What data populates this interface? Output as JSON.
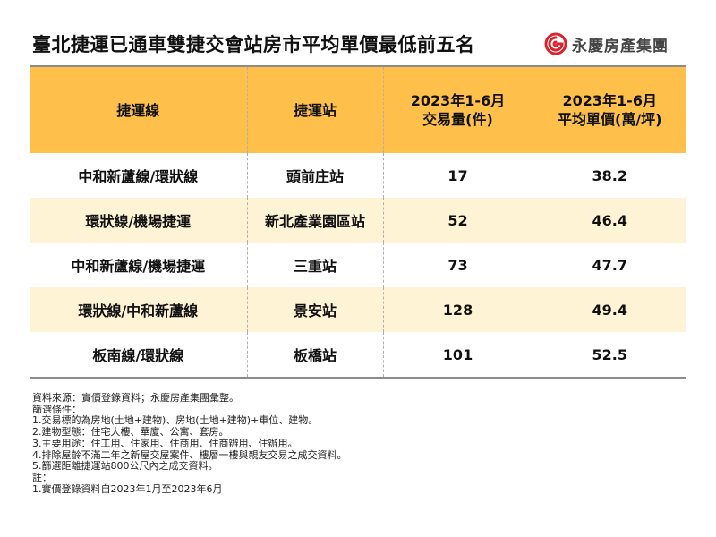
{
  "title": "臺北捷運已通車雙捷交會站房市平均單價最低前五名",
  "logo": {
    "text": "永慶房產集團",
    "brand_color": "#d9232d",
    "icon": "swirl-logo-icon"
  },
  "table": {
    "header_color": "#fec04a",
    "stripe_color": "#fff3d6"
  },
  "chart_data": {
    "type": "table",
    "columns": [
      [
        "捷運線"
      ],
      [
        "捷運站"
      ],
      [
        "2023年1-6月",
        "交易量(件)"
      ],
      [
        "2023年1-6月",
        "平均單價(萬/坪)"
      ]
    ],
    "rows": [
      {
        "line": "中和新蘆線/環狀線",
        "station": "頭前庄站",
        "volume": "17",
        "price": "38.2"
      },
      {
        "line": "環狀線/機場捷運",
        "station": "新北產業園區站",
        "volume": "52",
        "price": "46.4"
      },
      {
        "line": "中和新蘆線/機場捷運",
        "station": "三重站",
        "volume": "73",
        "price": "47.7"
      },
      {
        "line": "環狀線/中和新蘆線",
        "station": "景安站",
        "volume": "128",
        "price": "49.4"
      },
      {
        "line": "板南線/環狀線",
        "station": "板橋站",
        "volume": "101",
        "price": "52.5"
      }
    ]
  },
  "notes": [
    "資料來源：實價登錄資料；永慶房產集團彙整。",
    "篩選條件：",
    "1.交易標的為房地(土地+建物)、房地(土地+建物)+車位、建物。",
    "2.建物型態：住宅大樓、華廈、公寓、套房。",
    "3.主要用途：住工用、住家用、住商用、住商辦用、住辦用。",
    "4.排除屋齡不滿二年之新屋交屋案件、樓層一樓與親友交易之成交資料。",
    "5.篩選距離捷運站800公尺內之成交資料。",
    "註：",
    "1.實價登錄資料自2023年1月至2023年6月"
  ]
}
